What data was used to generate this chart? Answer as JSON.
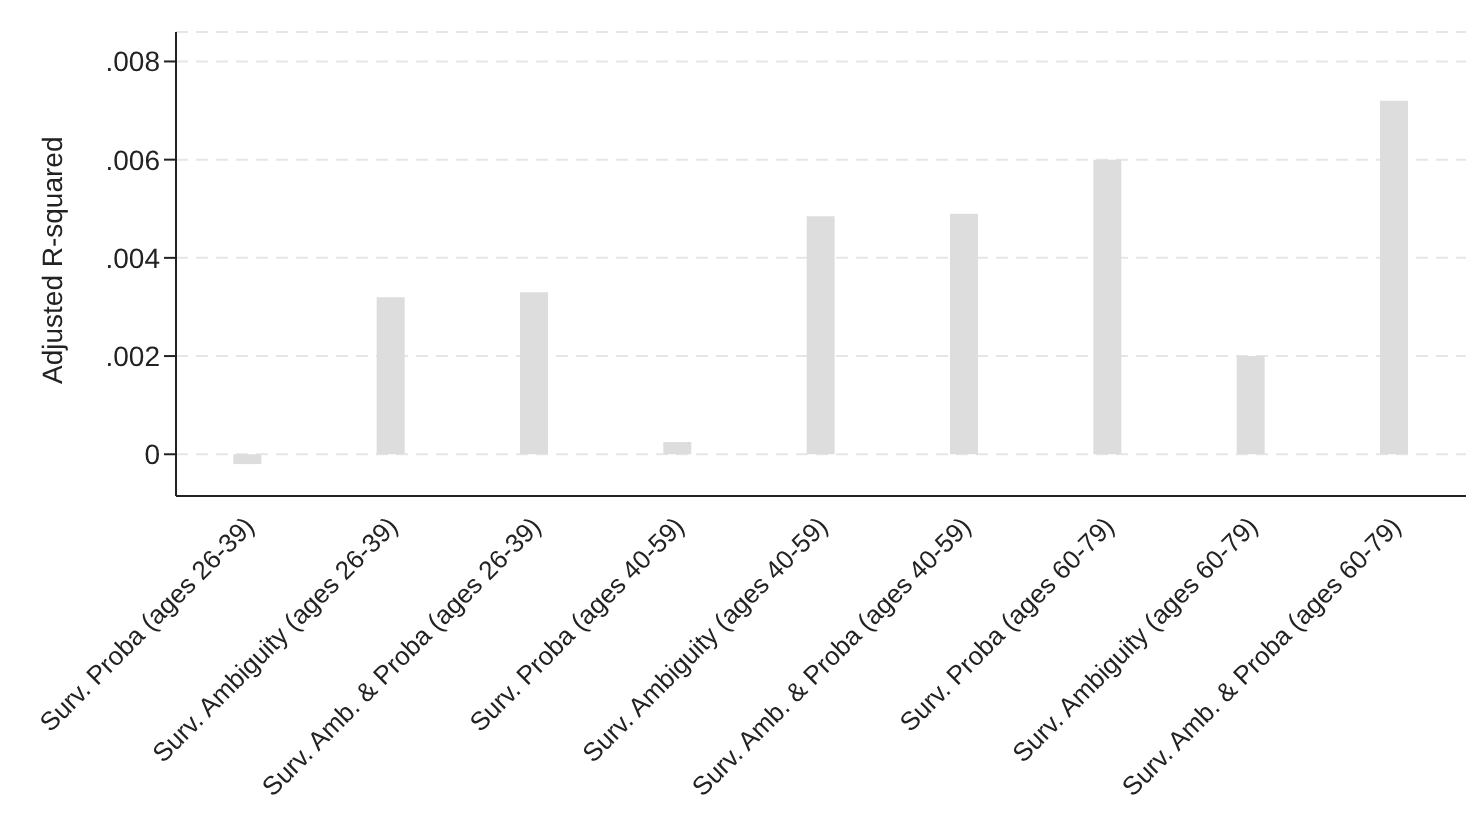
{
  "chart_data": {
    "type": "bar",
    "ylabel": "Adjusted R-squared",
    "categories": [
      "Surv. Proba (ages 26-39)",
      "Surv. Ambiguity (ages 26-39)",
      "Surv. Amb. & Proba (ages 26-39)",
      "Surv. Proba (ages 40-59)",
      "Surv. Ambiguity (ages 40-59)",
      "Surv. Amb. & Proba (ages 40-59)",
      "Surv. Proba (ages 60-79)",
      "Surv. Ambiguity (ages 60-79)",
      "Surv. Amb. & Proba (ages 60-79)"
    ],
    "values": [
      -0.0002,
      0.0032,
      0.0033,
      0.00025,
      0.00485,
      0.0049,
      0.006,
      0.002,
      0.0072
    ],
    "color": "#dddddd",
    "ylim": [
      -0.00085,
      0.0086
    ],
    "yticks": [
      0,
      {
        "value": 0.002,
        "label": ".002"
      },
      {
        "value": 0.004,
        "label": ".004"
      },
      {
        "value": 0.006,
        "label": ".006"
      },
      {
        "value": 0.008,
        "label": ".008"
      }
    ],
    "grid": "y"
  }
}
